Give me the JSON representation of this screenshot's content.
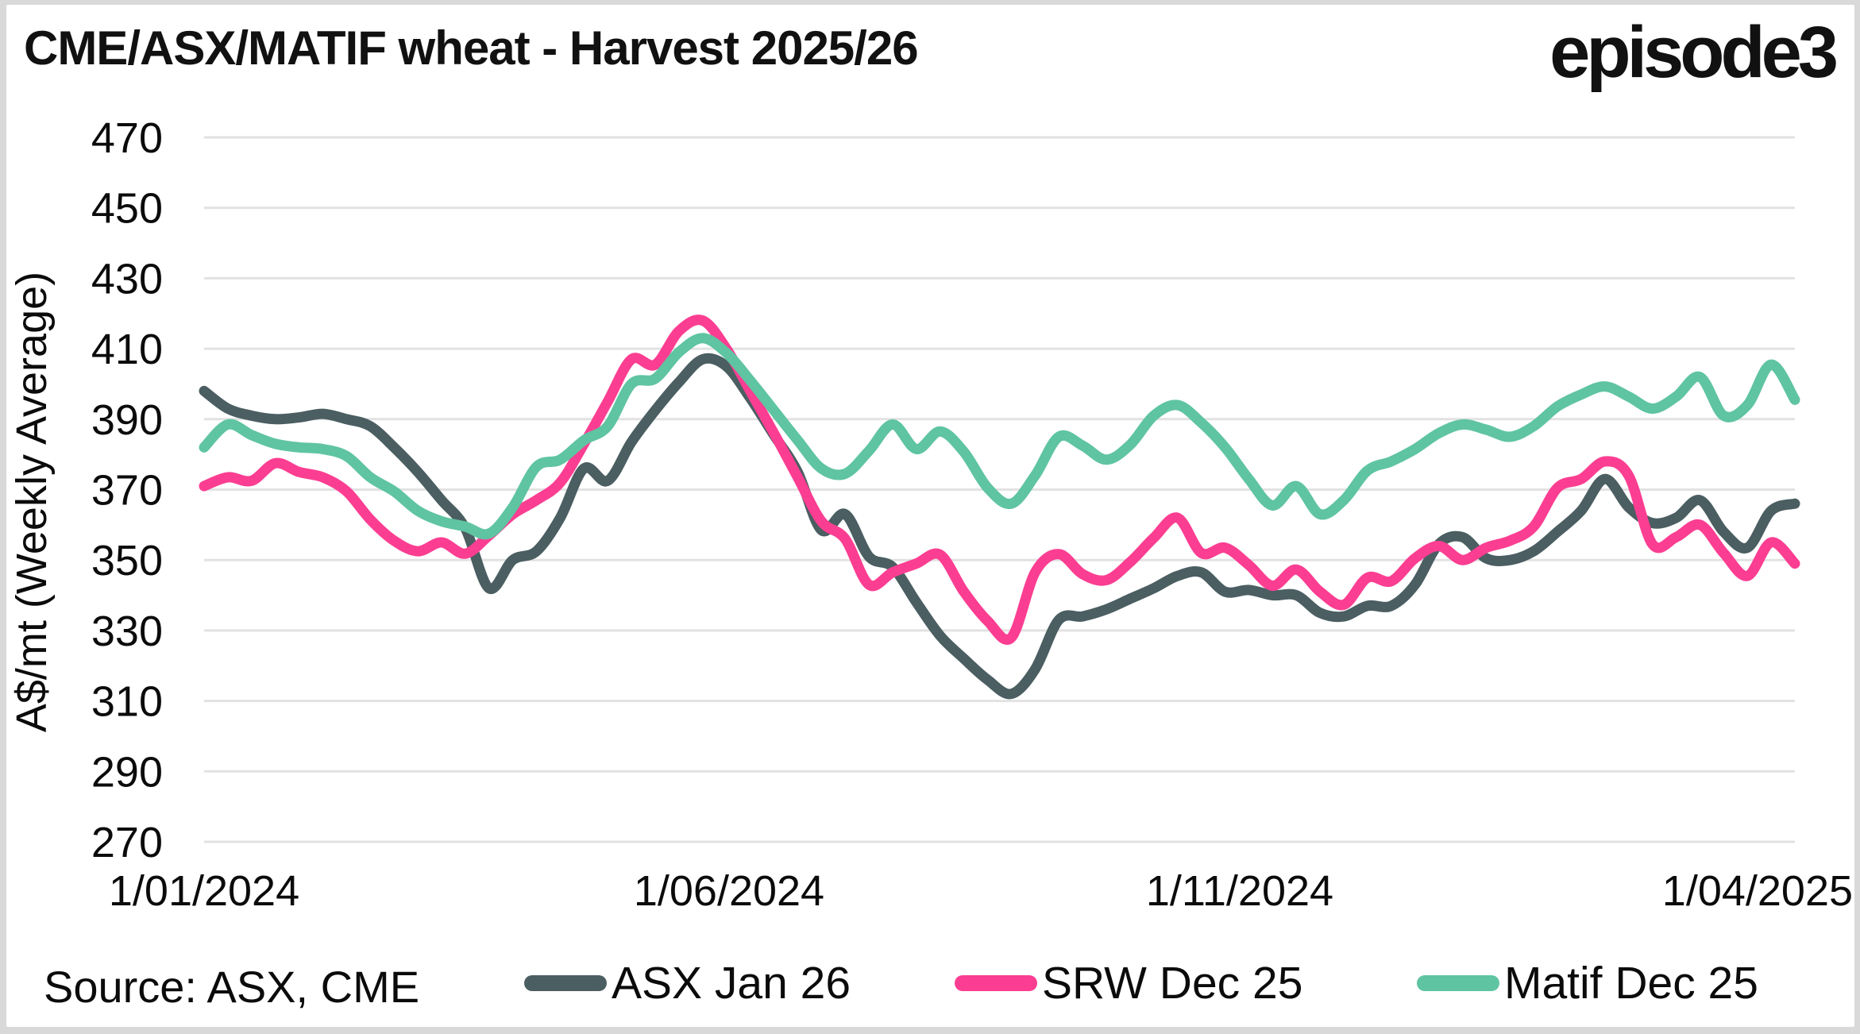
{
  "header": {
    "title": "CME/ASX/MATIF wheat - Harvest 2025/26",
    "logo_text": "episode3"
  },
  "source": {
    "label": "Source: ASX, CME"
  },
  "colors": {
    "background_frame": "#d9d9d9",
    "card": "#ffffff",
    "gridline": "#e2e2e2",
    "text": "#0b0b0b",
    "asx": "#4b5e62",
    "srw": "#fb3e92",
    "matif": "#5fc4a1"
  },
  "chart_data": {
    "type": "line",
    "title": "CME/ASX/MATIF wheat - Harvest 2025/26",
    "xlabel": "",
    "ylabel": "A$/mt (Weekly Average)",
    "ylim": [
      270,
      470
    ],
    "ytick_step": 20,
    "yticks": [
      270,
      290,
      310,
      330,
      350,
      370,
      390,
      410,
      430,
      450,
      470
    ],
    "grid": "horizontal",
    "legend_position": "bottom",
    "x_unit": "weekly averages, 1 Jan 2024 to mid-April 2025",
    "xticks": [
      {
        "label": "1/01/2024",
        "pos": 0.0
      },
      {
        "label": "1/06/2024",
        "pos": 0.33
      },
      {
        "label": "1/11/2024",
        "pos": 0.651
      },
      {
        "label": "1/04/2025",
        "pos": 0.9765
      }
    ],
    "series": [
      {
        "name": "ASX Jan 26",
        "color": "#4b5e62",
        "values": [
          398,
          393,
          391,
          390,
          390.5,
          391.5,
          390,
          388,
          382,
          375,
          367,
          359,
          342,
          350,
          352.5,
          362,
          376,
          372.5,
          383.5,
          392.5,
          400.5,
          407,
          405,
          396,
          385.5,
          375,
          358.5,
          363,
          351,
          348,
          338,
          328.5,
          322,
          316,
          312,
          319,
          333,
          334,
          336,
          339,
          342,
          345.5,
          346.5,
          341,
          341.5,
          340,
          340,
          335,
          334,
          337,
          337,
          343,
          354.5,
          356.5,
          350.5,
          350,
          352.5,
          358,
          364,
          373,
          365,
          360.5,
          362,
          367,
          358,
          353.5,
          364,
          366
        ]
      },
      {
        "name": "SRW Dec 25",
        "color": "#fb3e92",
        "values": [
          371,
          373.5,
          372.5,
          377.5,
          375,
          373.5,
          369.5,
          361.5,
          355.5,
          352.5,
          355,
          351.8,
          357,
          363,
          367,
          372,
          383,
          395,
          407,
          405.5,
          415,
          418,
          410,
          398,
          386,
          373.5,
          361,
          356,
          343,
          346.5,
          349,
          351.5,
          341,
          332.7,
          328,
          346.5,
          351.7,
          346,
          344.3,
          349.4,
          356.3,
          362,
          352,
          353.5,
          348.6,
          342.7,
          347.3,
          341,
          337.3,
          345,
          344,
          350.5,
          354,
          350,
          353.5,
          355.5,
          359.5,
          370.5,
          373,
          378,
          374,
          354.5,
          356.5,
          360,
          352,
          345.5,
          355,
          349
        ]
      },
      {
        "name": "Matif Dec 25",
        "color": "#5fc4a1",
        "values": [
          382,
          388.5,
          385.5,
          383,
          382,
          381.5,
          379.5,
          373.5,
          369.5,
          364,
          361,
          359.5,
          357.5,
          365,
          376.5,
          378.5,
          384,
          388,
          400,
          401.5,
          409,
          413,
          408.8,
          401,
          392.5,
          384,
          376,
          374.5,
          381,
          388.5,
          381.5,
          386.5,
          380.7,
          370.5,
          366,
          374,
          385,
          382.5,
          378.5,
          382.7,
          391,
          394,
          389,
          382,
          373,
          365.5,
          371,
          363,
          367,
          375.4,
          378,
          381.5,
          386,
          388.5,
          387,
          385,
          388,
          393.6,
          397,
          399.3,
          396.4,
          393,
          396.4,
          402,
          391,
          394,
          405.5,
          395.5
        ]
      }
    ]
  }
}
